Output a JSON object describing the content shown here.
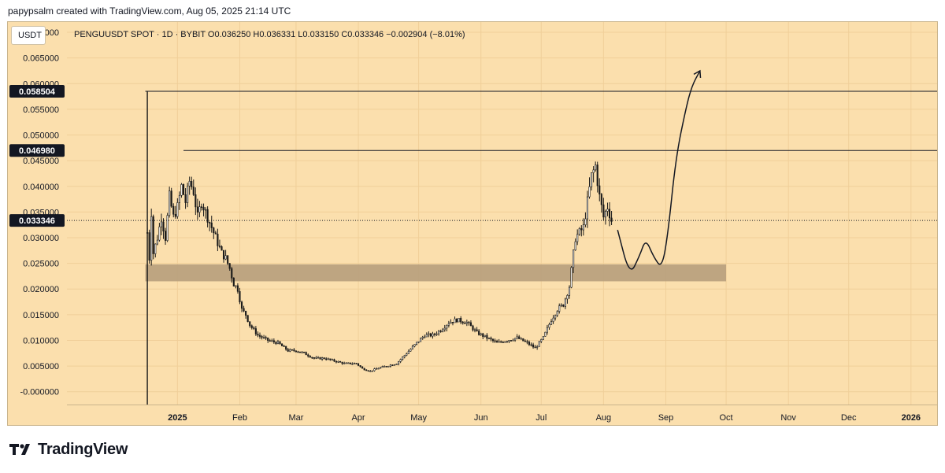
{
  "header": {
    "credit": "papypsalm created with TradingView.com, Aug 05, 2025 21:14 UTC"
  },
  "currency_button": "USDT",
  "legend": "PENGUUSDT SPOT · 1D · BYBIT  O0.036250  H0.036331  L0.033150  C0.033346  −0.002904 (−8.01%)",
  "footer": {
    "brand": "TradingView"
  },
  "colors": {
    "background": "#fbdfad",
    "candles": "#1a1a1a",
    "support_zone": "#b79e7c",
    "price_label": "#131722"
  },
  "chart_data": {
    "type": "candlestick",
    "symbol": "PENGUUSDT",
    "exchange": "BYBIT",
    "interval": "1D",
    "ohlc_last": {
      "open": 0.03625,
      "high": 0.036331,
      "low": 0.03315,
      "close": 0.033346,
      "change": -0.002904,
      "change_pct": -8.01
    },
    "y_ticks": [
      "0.070000",
      "0.065000",
      "0.060000",
      "0.055000",
      "0.050000",
      "0.045000",
      "0.040000",
      "0.035000",
      "0.030000",
      "0.025000",
      "0.020000",
      "0.015000",
      "0.010000",
      "0.005000",
      "-0.000000"
    ],
    "ylim": [
      -0.0025,
      0.072
    ],
    "x_ticks": [
      {
        "label": "2025",
        "date": "2025-01-01",
        "bold": true
      },
      {
        "label": "Feb",
        "date": "2025-02-01"
      },
      {
        "label": "Mar",
        "date": "2025-03-01"
      },
      {
        "label": "Apr",
        "date": "2025-04-01"
      },
      {
        "label": "May",
        "date": "2025-05-01"
      },
      {
        "label": "Jun",
        "date": "2025-06-01"
      },
      {
        "label": "Jul",
        "date": "2025-07-01"
      },
      {
        "label": "Aug",
        "date": "2025-08-01"
      },
      {
        "label": "Sep",
        "date": "2025-09-01"
      },
      {
        "label": "Oct",
        "date": "2025-10-01"
      },
      {
        "label": "Nov",
        "date": "2025-11-01"
      },
      {
        "label": "Dec",
        "date": "2025-12-01"
      },
      {
        "label": "2026",
        "date": "2026-01-01",
        "bold": true
      }
    ],
    "xlim": [
      "2024-11-07",
      "2026-01-14"
    ],
    "series_close": {
      "dates": [
        "2024-12-17",
        "2024-12-18",
        "2024-12-19",
        "2024-12-20",
        "2024-12-22",
        "2024-12-24",
        "2024-12-26",
        "2024-12-28",
        "2024-12-30",
        "2025-01-01",
        "2025-01-03",
        "2025-01-05",
        "2025-01-07",
        "2025-01-09",
        "2025-01-11",
        "2025-01-13",
        "2025-01-15",
        "2025-01-17",
        "2025-01-19",
        "2025-01-21",
        "2025-01-23",
        "2025-01-25",
        "2025-01-27",
        "2025-01-29",
        "2025-01-31",
        "2025-02-02",
        "2025-02-04",
        "2025-02-06",
        "2025-02-10",
        "2025-02-15",
        "2025-02-20",
        "2025-02-25",
        "2025-03-01",
        "2025-03-05",
        "2025-03-10",
        "2025-03-15",
        "2025-03-20",
        "2025-03-25",
        "2025-03-31",
        "2025-04-03",
        "2025-04-07",
        "2025-04-10",
        "2025-04-15",
        "2025-04-20",
        "2025-04-25",
        "2025-04-30",
        "2025-05-04",
        "2025-05-08",
        "2025-05-12",
        "2025-05-16",
        "2025-05-20",
        "2025-05-25",
        "2025-05-30",
        "2025-06-04",
        "2025-06-09",
        "2025-06-14",
        "2025-06-19",
        "2025-06-24",
        "2025-06-28",
        "2025-07-02",
        "2025-07-06",
        "2025-07-09",
        "2025-07-12",
        "2025-07-15",
        "2025-07-18",
        "2025-07-20",
        "2025-07-22",
        "2025-07-24",
        "2025-07-26",
        "2025-07-28",
        "2025-07-30",
        "2025-08-01",
        "2025-08-03",
        "2025-08-05"
      ],
      "values": [
        0.031,
        0.026,
        0.035,
        0.027,
        0.03,
        0.034,
        0.03,
        0.038,
        0.034,
        0.036,
        0.04,
        0.037,
        0.041,
        0.039,
        0.034,
        0.037,
        0.035,
        0.033,
        0.031,
        0.029,
        0.027,
        0.026,
        0.024,
        0.021,
        0.02,
        0.016,
        0.015,
        0.013,
        0.011,
        0.01,
        0.0095,
        0.008,
        0.008,
        0.0075,
        0.0065,
        0.0065,
        0.006,
        0.0055,
        0.0055,
        0.0045,
        0.004,
        0.0045,
        0.005,
        0.0055,
        0.0075,
        0.0095,
        0.011,
        0.011,
        0.012,
        0.0135,
        0.014,
        0.0135,
        0.0115,
        0.0105,
        0.0095,
        0.01,
        0.0105,
        0.0095,
        0.0085,
        0.0105,
        0.014,
        0.016,
        0.017,
        0.0205,
        0.03,
        0.031,
        0.032,
        0.037,
        0.042,
        0.044,
        0.038,
        0.034,
        0.036,
        0.033346
      ]
    },
    "spike_candle": {
      "date": "2024-12-17",
      "high": 0.0585,
      "low": -0.0025
    },
    "horizontal_levels": [
      {
        "price": 0.058504,
        "label": "0.058504",
        "start": "2024-12-16"
      },
      {
        "price": 0.04698,
        "label": "0.046980",
        "start": "2025-01-04"
      }
    ],
    "last_price_line": {
      "price": 0.033346,
      "label": "0.033346"
    },
    "support_zone": {
      "from": 0.0215,
      "to": 0.0248,
      "start": "2024-12-16",
      "end": "2025-10-01"
    },
    "projection_path": {
      "dates": [
        "2025-08-08",
        "2025-08-14",
        "2025-08-19",
        "2025-08-22",
        "2025-08-26",
        "2025-08-30",
        "2025-09-02",
        "2025-09-06",
        "2025-09-11",
        "2025-09-14",
        "2025-09-18"
      ],
      "prices": [
        0.0315,
        0.0225,
        0.0265,
        0.0298,
        0.0262,
        0.024,
        0.0305,
        0.0456,
        0.0552,
        0.0596,
        0.0625
      ]
    }
  }
}
